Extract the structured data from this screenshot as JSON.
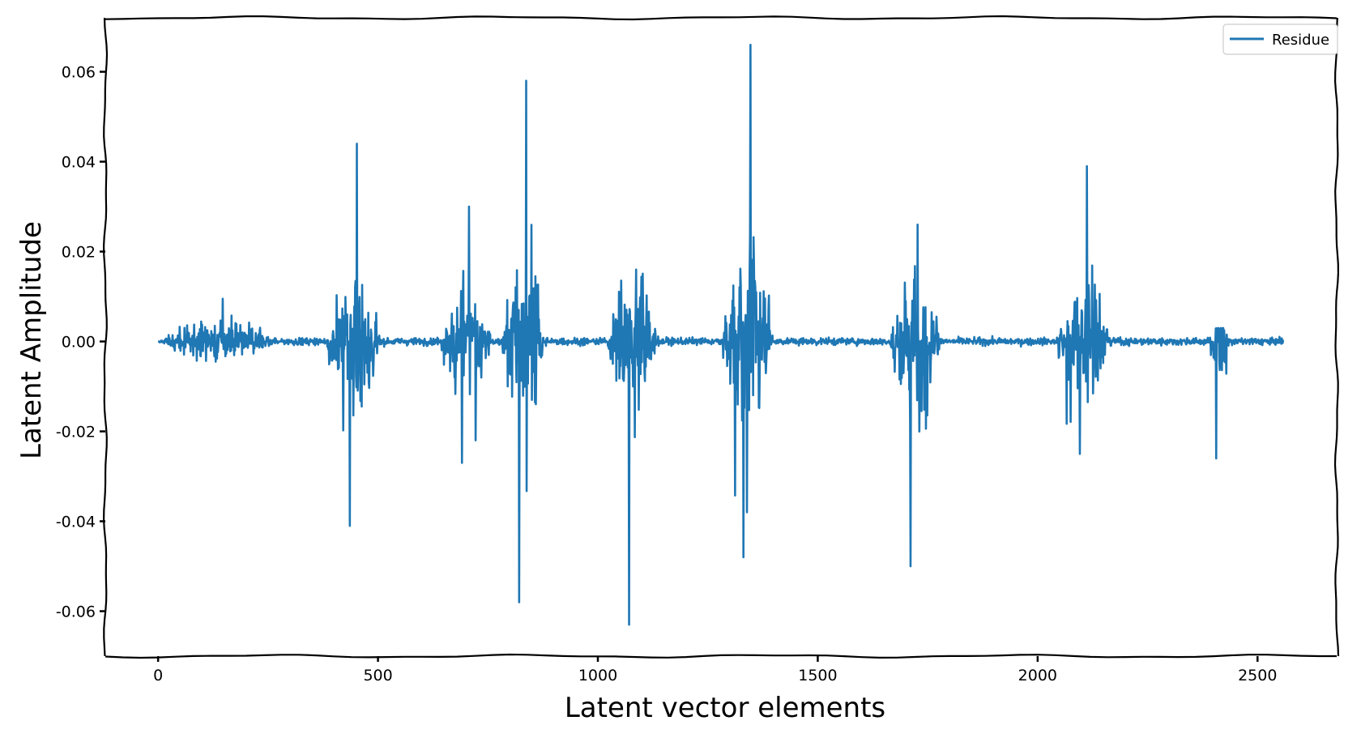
{
  "chart_data": {
    "type": "line",
    "title": "",
    "xlabel": "Latent vector elements",
    "ylabel": "Latent Amplitude",
    "xlim": [
      -120,
      2680
    ],
    "ylim": [
      -0.07,
      0.072
    ],
    "xticks": [
      0,
      500,
      1000,
      1500,
      2000,
      2500
    ],
    "yticks": [
      0.06,
      0.04,
      0.02,
      0.0,
      -0.02,
      -0.04,
      -0.06
    ],
    "xtick_labels": [
      "0",
      "500",
      "1000",
      "1500",
      "2000",
      "2500"
    ],
    "ytick_labels": [
      "0.06",
      "0.04",
      "0.02",
      "0.00",
      "-0.02",
      "-0.04",
      "-0.06"
    ],
    "grid": false,
    "legend_position": "top-right",
    "colors": {
      "series": "#1f77b4",
      "frame": "#000000",
      "background": "#ffffff"
    },
    "series": [
      {
        "name": "Residue",
        "n_points": 2560,
        "baseline_noise": 0.0015,
        "bursts": [
          {
            "start": 0,
            "end": 280,
            "amp": 0.004,
            "max": 0.0095,
            "min": -0.0045
          },
          {
            "start": 380,
            "end": 510,
            "amp": 0.014,
            "max": 0.044,
            "min": -0.041
          },
          {
            "start": 640,
            "end": 760,
            "amp": 0.011,
            "max": 0.03,
            "min": -0.027
          },
          {
            "start": 780,
            "end": 880,
            "amp": 0.018,
            "max": 0.058,
            "min": -0.058
          },
          {
            "start": 1020,
            "end": 1140,
            "amp": 0.014,
            "max": 0.016,
            "min": -0.063
          },
          {
            "start": 1280,
            "end": 1400,
            "amp": 0.02,
            "max": 0.066,
            "min": -0.048
          },
          {
            "start": 1660,
            "end": 1780,
            "amp": 0.014,
            "max": 0.026,
            "min": -0.05
          },
          {
            "start": 2040,
            "end": 2170,
            "amp": 0.012,
            "max": 0.039,
            "min": -0.025
          },
          {
            "start": 2390,
            "end": 2440,
            "amp": 0.006,
            "max": 0.003,
            "min": -0.026
          }
        ]
      }
    ]
  }
}
